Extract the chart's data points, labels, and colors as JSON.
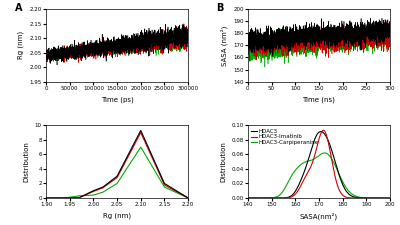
{
  "panel_A_label": "A",
  "panel_B_label": "B",
  "rg_time_xlim": [
    0,
    300000
  ],
  "rg_time_xticks": [
    0,
    50000,
    100000,
    150000,
    200000,
    250000,
    300000
  ],
  "rg_time_ylim": [
    1.95,
    2.2
  ],
  "rg_time_yticks": [
    1.95,
    2.0,
    2.05,
    2.1,
    2.15,
    2.2
  ],
  "rg_time_xlabel": "Time (ps)",
  "rg_time_ylabel": "Rg (nm)",
  "rg_dist_xlim": [
    1.9,
    2.2
  ],
  "rg_dist_xticks": [
    1.9,
    1.95,
    2.0,
    2.05,
    2.1,
    2.15,
    2.2
  ],
  "rg_dist_ylim": [
    0,
    10
  ],
  "rg_dist_yticks": [
    0,
    2,
    4,
    6,
    8,
    10
  ],
  "rg_dist_xlabel": "Rg (nm)",
  "rg_dist_ylabel": "Distribution",
  "sasa_time_xlim": [
    0,
    300
  ],
  "sasa_time_xticks": [
    0,
    50,
    100,
    150,
    200,
    250,
    300
  ],
  "sasa_time_ylim": [
    140,
    200
  ],
  "sasa_time_yticks": [
    140,
    150,
    160,
    170,
    180,
    190,
    200
  ],
  "sasa_time_xlabel": "Time (ns)",
  "sasa_time_ylabel": "SASA (nm²)",
  "sasa_dist_xlim": [
    140,
    200
  ],
  "sasa_dist_xticks": [
    140,
    150,
    160,
    170,
    180,
    190,
    200
  ],
  "sasa_dist_ylim": [
    0,
    0.1
  ],
  "sasa_dist_yticks": [
    0,
    0.02,
    0.04,
    0.06,
    0.08,
    0.1
  ],
  "sasa_dist_xlabel": "SASA(nm²)",
  "sasa_dist_ylabel": "Distribution",
  "colors": {
    "black": "#000000",
    "red": "#cc0000",
    "green": "#00aa00"
  },
  "legend_labels": [
    "HDAC3",
    "HDAC3-Imatinib",
    "HDAC3-Carpiperanine"
  ],
  "legend_colors": [
    "#000000",
    "#cc0000",
    "#00aa00"
  ],
  "lw_time": 0.4,
  "lw_dist": 0.8,
  "fontsize_label": 5,
  "fontsize_tick": 4,
  "fontsize_legend": 4,
  "fontsize_panel": 7
}
